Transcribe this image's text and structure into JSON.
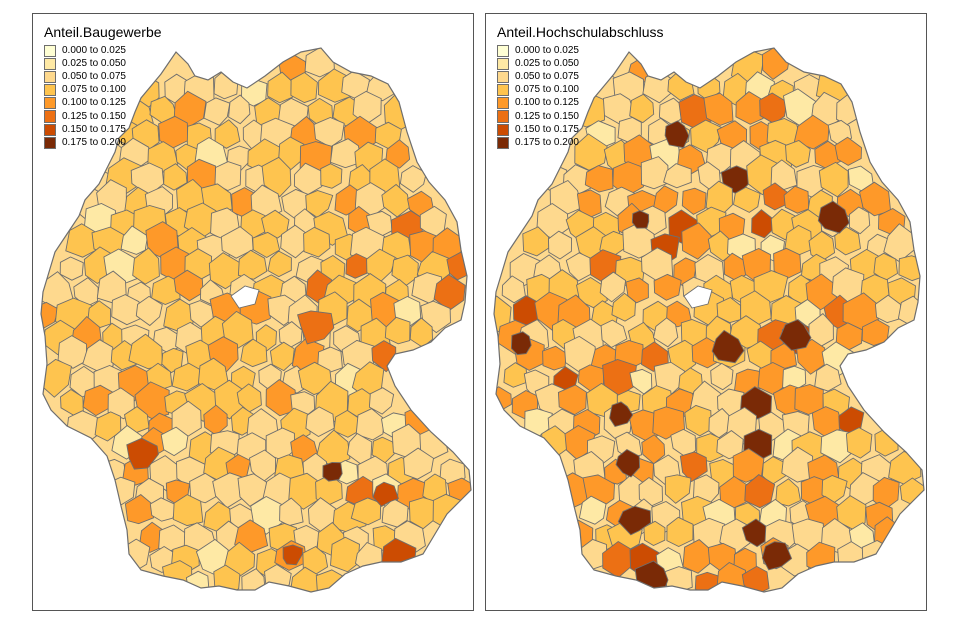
{
  "legend_bins": [
    {
      "label": "0.000 to 0.025",
      "color": "#ffffd4"
    },
    {
      "label": "0.025 to 0.050",
      "color": "#fee9a5"
    },
    {
      "label": "0.050 to 0.075",
      "color": "#fed98e"
    },
    {
      "label": "0.075 to 0.100",
      "color": "#fec44f"
    },
    {
      "label": "0.100 to 0.125",
      "color": "#fe9929"
    },
    {
      "label": "0.125 to 0.150",
      "color": "#ec7014"
    },
    {
      "label": "0.150 to 0.175",
      "color": "#cc4c02"
    },
    {
      "label": "0.175 to 0.200",
      "color": "#7a2a06"
    }
  ],
  "maps": [
    {
      "variable": "Anteil.Baugewerbe",
      "dominant_bins": [
        2,
        3
      ],
      "hotspots": [
        [
          5,
          7
        ],
        [
          6,
          6
        ],
        [
          6,
          7
        ]
      ]
    },
    {
      "variable": "Anteil.Hochschulabschluss",
      "dominant_bins": [
        2,
        3,
        4
      ],
      "hotspots": [
        [
          7,
          7
        ],
        [
          7,
          7
        ],
        [
          7,
          7
        ]
      ]
    }
  ],
  "map_style": {
    "border_color": "#6e6e6e",
    "background": "#ffffff",
    "panel_border": "#555555"
  }
}
